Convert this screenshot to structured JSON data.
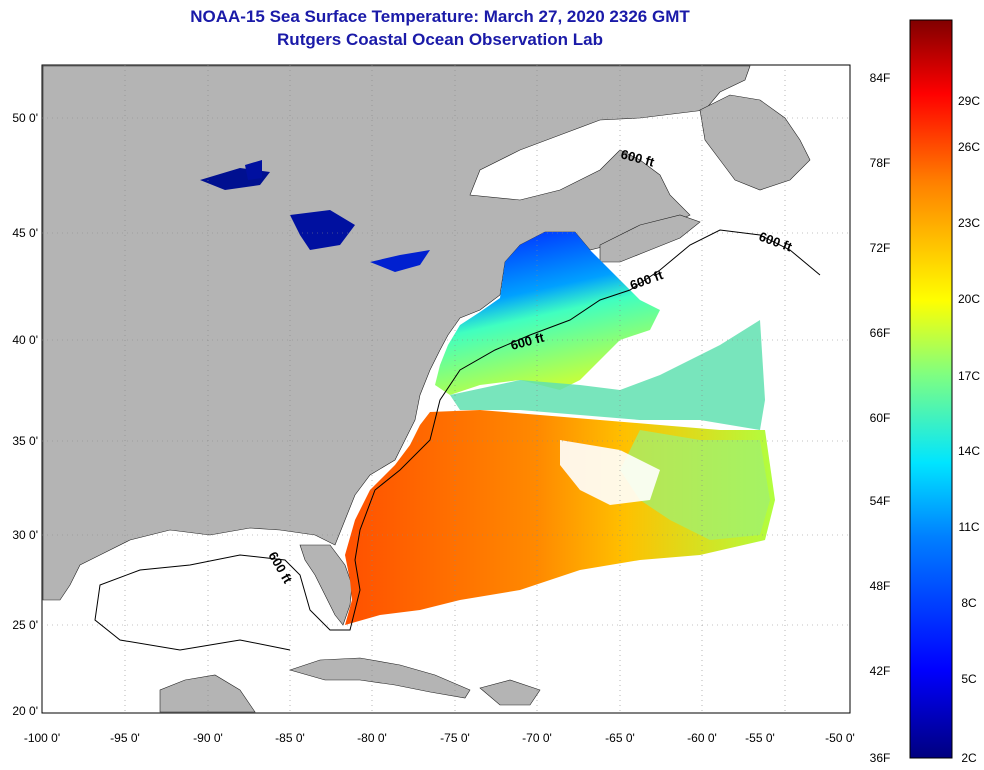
{
  "header": {
    "title": "NOAA-15 Sea Surface Temperature:  March 27, 2020 2326 GMT",
    "subtitle": "Rutgers Coastal Ocean Observation Lab"
  },
  "map": {
    "lat_labels": [
      "50 0'",
      "45 0'",
      "40 0'",
      "35 0'",
      "30 0'",
      "25 0'",
      "20 0'"
    ],
    "lon_labels": [
      "-100 0'",
      "-95 0'",
      "-90 0'",
      "-85 0'",
      "-80 0'",
      "-75 0'",
      "-70 0'",
      "-65 0'",
      "-60 0'",
      "-55 0'",
      "-50 0'"
    ],
    "contour_labels": [
      "600 ft",
      "600 ft",
      "600 ft",
      "600 ft",
      "600 ft"
    ]
  },
  "colorbar": {
    "fahrenheit_labels": [
      "84F",
      "78F",
      "72F",
      "66F",
      "60F",
      "54F",
      "48F",
      "42F",
      "36F"
    ],
    "celsius_labels": [
      "29C",
      "26C",
      "23C",
      "20C",
      "17C",
      "14C",
      "11C",
      "8C",
      "5C",
      "2C"
    ],
    "range_c": [
      2,
      31
    ],
    "colors": [
      "#00007f",
      "#0000ff",
      "#0080ff",
      "#00e5ff",
      "#80ff80",
      "#ffff00",
      "#ff8000",
      "#ff0000",
      "#800000"
    ]
  },
  "colors": {
    "land": "#b4b4b4",
    "ocean_no_data": "#ffffff",
    "title": "#1a1aa8"
  }
}
